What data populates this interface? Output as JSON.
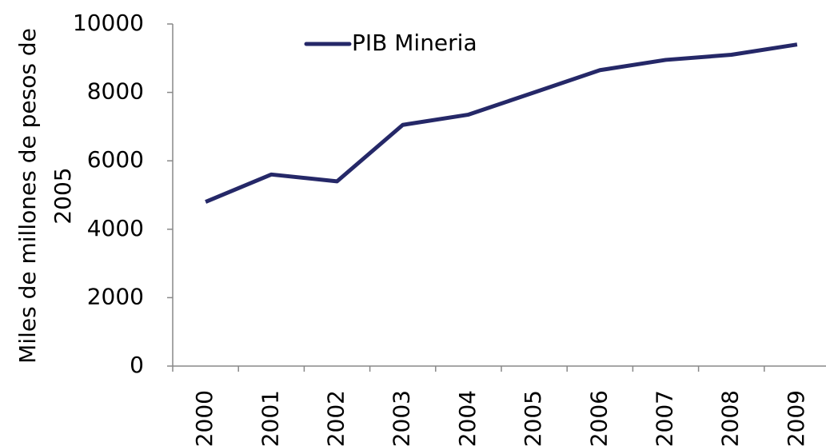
{
  "chart_data": {
    "type": "line",
    "ylabel": "Miles de millones de pesos de 2005",
    "categories": [
      "2000",
      "2001",
      "2002",
      "2003",
      "2004",
      "2005",
      "2006",
      "2007",
      "2008",
      "2009"
    ],
    "series": [
      {
        "name": "PIB Mineria",
        "color": "#252868",
        "values": [
          4800,
          5600,
          5400,
          7050,
          7350,
          8000,
          8650,
          8950,
          9100,
          9400
        ]
      }
    ],
    "ylim": [
      0,
      10000
    ],
    "yticks": [
      0,
      2000,
      4000,
      6000,
      8000,
      10000
    ],
    "grid": false,
    "legend": "top"
  }
}
